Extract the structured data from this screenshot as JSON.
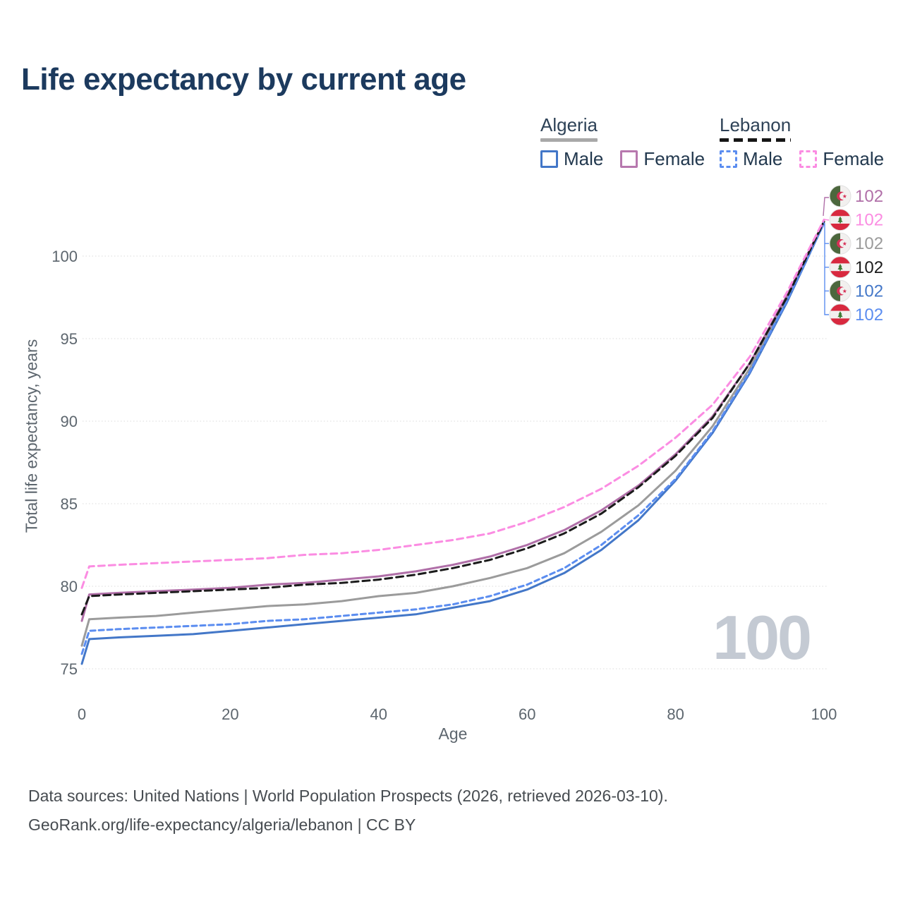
{
  "title": "Life expectancy by current age",
  "legend": {
    "groups": [
      {
        "label": "Algeria",
        "line_style": "solid",
        "underline_color": "#a8a8a8"
      },
      {
        "label": "Lebanon",
        "line_style": "dashed",
        "underline_color": "#161616"
      }
    ],
    "items": [
      {
        "label": "Male",
        "country": "Algeria",
        "color": "#4377c8",
        "dash": false
      },
      {
        "label": "Female",
        "country": "Algeria",
        "color": "#b778ae",
        "dash": false
      },
      {
        "label": "Male",
        "country": "Lebanon",
        "color": "#5b8df0",
        "dash": true
      },
      {
        "label": "Female",
        "country": "Lebanon",
        "color": "#fb8ce2",
        "dash": true
      }
    ]
  },
  "watermark": "100",
  "source": {
    "line1": "Data sources: United Nations | World Population Prospects (2026, retrieved 2026-03-10).",
    "line2": "GeoRank.org/life-expectancy/algeria/lebanon | CC BY"
  },
  "chart_data": {
    "type": "line",
    "title": "Life expectancy by current age",
    "xlabel": "Age",
    "ylabel": "Total life expectancy, years",
    "xlim": [
      0,
      100
    ],
    "ylim": [
      74.5,
      103
    ],
    "xticks": [
      0,
      20,
      40,
      60,
      80,
      100
    ],
    "yticks": [
      75,
      80,
      85,
      90,
      95,
      100
    ],
    "grid": "horizontal-dotted",
    "legend_position": "top-right",
    "x": [
      0,
      1,
      5,
      10,
      15,
      20,
      25,
      30,
      35,
      40,
      45,
      50,
      55,
      60,
      65,
      70,
      75,
      80,
      85,
      90,
      95,
      100
    ],
    "series": [
      {
        "name": "Algeria Female",
        "country": "Algeria",
        "sex": "Female",
        "color": "#b06fa8",
        "dash": null,
        "flag": "algeria",
        "end_label": "102",
        "label_row": 0,
        "values": [
          77.9,
          79.5,
          79.6,
          79.7,
          79.8,
          79.9,
          80.1,
          80.2,
          80.4,
          80.6,
          80.9,
          81.3,
          81.8,
          82.5,
          83.4,
          84.6,
          86.1,
          88.0,
          90.3,
          93.5,
          97.6,
          102.1
        ]
      },
      {
        "name": "Lebanon Female",
        "country": "Lebanon",
        "sex": "Female",
        "color": "#fb8ce2",
        "dash": "9 6",
        "flag": "lebanon",
        "end_label": "102",
        "label_row": 1,
        "values": [
          79.9,
          81.2,
          81.3,
          81.4,
          81.5,
          81.6,
          81.7,
          81.9,
          82.0,
          82.2,
          82.5,
          82.8,
          83.2,
          83.9,
          84.8,
          85.9,
          87.3,
          89.0,
          91.0,
          93.9,
          97.8,
          102.2
        ]
      },
      {
        "name": "Algeria Both sexes",
        "country": "Algeria",
        "sex": "Both",
        "color": "#9b9b9b",
        "dash": null,
        "flag": "algeria",
        "end_label": "102",
        "label_row": 2,
        "values": [
          76.4,
          78.0,
          78.1,
          78.2,
          78.4,
          78.6,
          78.8,
          78.9,
          79.1,
          79.4,
          79.6,
          80.0,
          80.5,
          81.1,
          82.0,
          83.3,
          84.9,
          87.0,
          89.7,
          93.2,
          97.4,
          102.0
        ]
      },
      {
        "name": "Lebanon Both sexes",
        "country": "Lebanon",
        "sex": "Both",
        "color": "#1b1b1b",
        "dash": "10 6",
        "flag": "lebanon",
        "end_label": "102",
        "label_row": 3,
        "values": [
          78.3,
          79.4,
          79.5,
          79.6,
          79.7,
          79.8,
          79.9,
          80.1,
          80.2,
          80.4,
          80.7,
          81.1,
          81.6,
          82.3,
          83.2,
          84.4,
          86.0,
          87.9,
          90.2,
          93.5,
          97.5,
          102.1
        ]
      },
      {
        "name": "Algeria Male",
        "country": "Algeria",
        "sex": "Male",
        "color": "#4377c8",
        "dash": null,
        "flag": "algeria",
        "end_label": "102",
        "label_row": 4,
        "values": [
          75.3,
          76.8,
          76.9,
          77.0,
          77.1,
          77.3,
          77.5,
          77.7,
          77.9,
          78.1,
          78.3,
          78.7,
          79.1,
          79.8,
          80.8,
          82.2,
          84.0,
          86.4,
          89.3,
          92.9,
          97.2,
          102.0
        ]
      },
      {
        "name": "Lebanon Male",
        "country": "Lebanon",
        "sex": "Male",
        "color": "#5b8df0",
        "dash": "7 5",
        "flag": "lebanon",
        "end_label": "102",
        "label_row": 5,
        "values": [
          75.9,
          77.3,
          77.4,
          77.5,
          77.6,
          77.7,
          77.9,
          78.0,
          78.2,
          78.4,
          78.6,
          78.9,
          79.4,
          80.1,
          81.1,
          82.5,
          84.3,
          86.5,
          89.4,
          93.0,
          97.3,
          102.0
        ]
      }
    ],
    "flag_colors": {
      "algeria_green": "#4c673d",
      "flag_white": "#f2f0ef",
      "algeria_red": "#d63056",
      "lebanon_red": "#d8293f",
      "lebanon_cedar_green": "#3c7a35"
    }
  }
}
